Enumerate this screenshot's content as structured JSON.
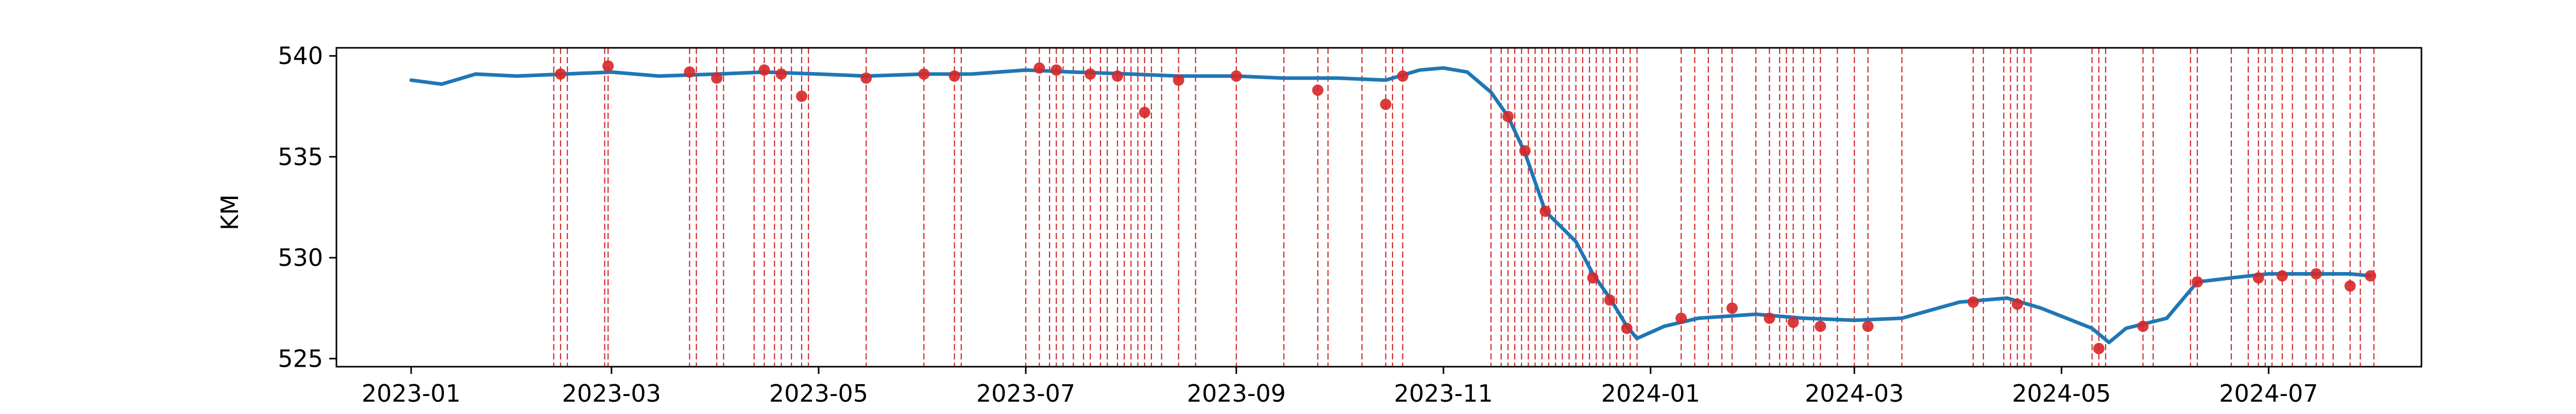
{
  "chart_data": {
    "type": "line",
    "title": "",
    "xlabel": "",
    "ylabel": "KM",
    "xlim": [
      "2022-12-10",
      "2024-08-15"
    ],
    "ylim": [
      524.6,
      540.4
    ],
    "x_ticks": [
      "2023-01",
      "2023-03",
      "2023-05",
      "2023-07",
      "2023-09",
      "2023-11",
      "2024-01",
      "2024-03",
      "2024-05",
      "2024-07"
    ],
    "y_ticks": [
      525,
      530,
      535,
      540
    ],
    "grid": false,
    "legend": "none",
    "series": [
      {
        "role": "level",
        "color": "#1f77b4",
        "points": [
          [
            "2023-01-01",
            538.8
          ],
          [
            "2023-01-10",
            538.6
          ],
          [
            "2023-01-20",
            539.1
          ],
          [
            "2023-02-01",
            539.0
          ],
          [
            "2023-02-15",
            539.1
          ],
          [
            "2023-03-01",
            539.2
          ],
          [
            "2023-03-15",
            539.0
          ],
          [
            "2023-04-01",
            539.1
          ],
          [
            "2023-04-15",
            539.2
          ],
          [
            "2023-05-01",
            539.1
          ],
          [
            "2023-05-15",
            539.0
          ],
          [
            "2023-06-01",
            539.1
          ],
          [
            "2023-06-15",
            539.1
          ],
          [
            "2023-07-01",
            539.3
          ],
          [
            "2023-07-15",
            539.2
          ],
          [
            "2023-08-01",
            539.1
          ],
          [
            "2023-08-15",
            539.0
          ],
          [
            "2023-09-01",
            539.0
          ],
          [
            "2023-09-15",
            538.9
          ],
          [
            "2023-10-01",
            538.9
          ],
          [
            "2023-10-15",
            538.8
          ],
          [
            "2023-10-25",
            539.3
          ],
          [
            "2023-11-01",
            539.4
          ],
          [
            "2023-11-08",
            539.2
          ],
          [
            "2023-11-15",
            538.2
          ],
          [
            "2023-11-20",
            537.0
          ],
          [
            "2023-11-25",
            535.2
          ],
          [
            "2023-12-01",
            532.3
          ],
          [
            "2023-12-10",
            530.8
          ],
          [
            "2023-12-15",
            529.2
          ],
          [
            "2023-12-20",
            528.0
          ],
          [
            "2023-12-25",
            526.6
          ],
          [
            "2023-12-28",
            526.0
          ],
          [
            "2024-01-05",
            526.6
          ],
          [
            "2024-01-15",
            527.0
          ],
          [
            "2024-02-01",
            527.2
          ],
          [
            "2024-02-15",
            527.0
          ],
          [
            "2024-03-01",
            526.9
          ],
          [
            "2024-03-15",
            527.0
          ],
          [
            "2024-04-01",
            527.8
          ],
          [
            "2024-04-15",
            528.0
          ],
          [
            "2024-04-25",
            527.5
          ],
          [
            "2024-05-01",
            527.1
          ],
          [
            "2024-05-10",
            526.5
          ],
          [
            "2024-05-15",
            525.8
          ],
          [
            "2024-05-20",
            526.5
          ],
          [
            "2024-06-01",
            527.0
          ],
          [
            "2024-06-10",
            528.8
          ],
          [
            "2024-06-20",
            529.0
          ],
          [
            "2024-07-01",
            529.2
          ],
          [
            "2024-07-15",
            529.2
          ],
          [
            "2024-07-25",
            529.2
          ],
          [
            "2024-07-31",
            529.1
          ]
        ]
      },
      {
        "role": "anomalies",
        "color": "#d62728",
        "marker": "dot",
        "points": [
          [
            "2023-02-14",
            539.1
          ],
          [
            "2023-02-28",
            539.5
          ],
          [
            "2023-03-24",
            539.2
          ],
          [
            "2023-04-01",
            538.9
          ],
          [
            "2023-04-15",
            539.3
          ],
          [
            "2023-04-20",
            539.1
          ],
          [
            "2023-04-26",
            538.0
          ],
          [
            "2023-05-15",
            538.9
          ],
          [
            "2023-06-01",
            539.1
          ],
          [
            "2023-06-10",
            539.0
          ],
          [
            "2023-07-05",
            539.4
          ],
          [
            "2023-07-10",
            539.3
          ],
          [
            "2023-07-20",
            539.1
          ],
          [
            "2023-07-28",
            539.0
          ],
          [
            "2023-08-05",
            537.2
          ],
          [
            "2023-08-15",
            538.8
          ],
          [
            "2023-09-01",
            539.0
          ],
          [
            "2023-09-25",
            538.3
          ],
          [
            "2023-10-15",
            537.6
          ],
          [
            "2023-10-20",
            539.0
          ],
          [
            "2023-11-20",
            537.0
          ],
          [
            "2023-11-25",
            535.3
          ],
          [
            "2023-12-01",
            532.3
          ],
          [
            "2023-12-15",
            529.0
          ],
          [
            "2023-12-20",
            527.9
          ],
          [
            "2023-12-25",
            526.5
          ],
          [
            "2024-01-10",
            527.0
          ],
          [
            "2024-01-25",
            527.5
          ],
          [
            "2024-02-05",
            527.0
          ],
          [
            "2024-02-12",
            526.8
          ],
          [
            "2024-02-20",
            526.6
          ],
          [
            "2024-03-05",
            526.6
          ],
          [
            "2024-04-05",
            527.8
          ],
          [
            "2024-04-18",
            527.7
          ],
          [
            "2024-05-12",
            525.5
          ],
          [
            "2024-05-25",
            526.6
          ],
          [
            "2024-06-10",
            528.8
          ],
          [
            "2024-06-28",
            529.0
          ],
          [
            "2024-07-05",
            529.1
          ],
          [
            "2024-07-15",
            529.2
          ],
          [
            "2024-07-25",
            528.6
          ],
          [
            "2024-07-31",
            529.1
          ]
        ]
      },
      {
        "role": "event-markers",
        "color": "#d62728",
        "style": "dashed-vertical",
        "dates": [
          "2023-02-12",
          "2023-02-14",
          "2023-02-16",
          "2023-02-27",
          "2023-02-28",
          "2023-03-24",
          "2023-03-26",
          "2023-04-01",
          "2023-04-03",
          "2023-04-12",
          "2023-04-15",
          "2023-04-18",
          "2023-04-20",
          "2023-04-23",
          "2023-04-26",
          "2023-04-28",
          "2023-05-15",
          "2023-06-01",
          "2023-06-10",
          "2023-06-12",
          "2023-07-01",
          "2023-07-05",
          "2023-07-08",
          "2023-07-10",
          "2023-07-12",
          "2023-07-15",
          "2023-07-18",
          "2023-07-20",
          "2023-07-23",
          "2023-07-25",
          "2023-07-28",
          "2023-07-30",
          "2023-08-01",
          "2023-08-03",
          "2023-08-05",
          "2023-08-07",
          "2023-08-10",
          "2023-08-15",
          "2023-08-20",
          "2023-09-01",
          "2023-09-15",
          "2023-09-25",
          "2023-09-28",
          "2023-10-08",
          "2023-10-15",
          "2023-10-17",
          "2023-10-20",
          "2023-11-15",
          "2023-11-18",
          "2023-11-20",
          "2023-11-22",
          "2023-11-24",
          "2023-11-26",
          "2023-11-28",
          "2023-11-30",
          "2023-12-02",
          "2023-12-04",
          "2023-12-06",
          "2023-12-08",
          "2023-12-10",
          "2023-12-12",
          "2023-12-14",
          "2023-12-16",
          "2023-12-18",
          "2023-12-20",
          "2023-12-22",
          "2023-12-24",
          "2023-12-26",
          "2023-12-28",
          "2024-01-10",
          "2024-01-14",
          "2024-01-18",
          "2024-01-22",
          "2024-01-25",
          "2024-02-01",
          "2024-02-05",
          "2024-02-08",
          "2024-02-10",
          "2024-02-12",
          "2024-02-15",
          "2024-02-18",
          "2024-02-20",
          "2024-02-25",
          "2024-03-01",
          "2024-03-05",
          "2024-03-15",
          "2024-04-05",
          "2024-04-08",
          "2024-04-14",
          "2024-04-16",
          "2024-04-18",
          "2024-04-20",
          "2024-04-22",
          "2024-05-10",
          "2024-05-12",
          "2024-05-14",
          "2024-05-25",
          "2024-05-28",
          "2024-06-08",
          "2024-06-10",
          "2024-06-20",
          "2024-06-25",
          "2024-06-28",
          "2024-06-30",
          "2024-07-02",
          "2024-07-05",
          "2024-07-08",
          "2024-07-12",
          "2024-07-15",
          "2024-07-17",
          "2024-07-20",
          "2024-07-25",
          "2024-07-28",
          "2024-08-01"
        ]
      }
    ]
  }
}
